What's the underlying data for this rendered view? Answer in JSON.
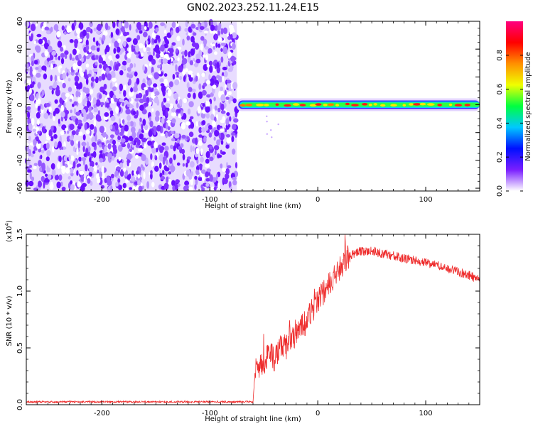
{
  "title": "GN02.2023.252.11.24.E15",
  "chart_data": [
    {
      "type": "heatmap",
      "xlabel": "Height of straight line (km)",
      "ylabel": "Frequency (Hz)",
      "xlim": [
        -270,
        150
      ],
      "ylim": [
        -62,
        60
      ],
      "x_tick_labels": [
        "-200",
        "-100",
        "0",
        "100"
      ],
      "y_tick_labels": [
        "60",
        "40",
        "20",
        "0",
        "-20",
        "-40",
        "-60"
      ],
      "noise_region_x": [
        -270,
        -75
      ],
      "signal_band_x": [
        -75,
        150
      ],
      "signal_center_hz": 0,
      "colorbar": {
        "label": "Normalized spectral amplitude",
        "range": [
          0,
          1
        ],
        "tick_labels": [
          "0.0",
          "0.2",
          "0.4",
          "0.6",
          "0.8"
        ],
        "colors": [
          "#ffffff",
          "#7a1fff",
          "#0010ff",
          "#00c8ff",
          "#00ff40",
          "#f0ff00",
          "#ff9000",
          "#ff0000",
          "#ff0080"
        ]
      }
    },
    {
      "type": "line",
      "xlabel": "Height of straight line (km)",
      "ylabel": "SNR (10 * v/v)",
      "y_scale_label": "(x10",
      "y_scale_exp": "4",
      "y_scale_close": ")",
      "xlim": [
        -270,
        150
      ],
      "ylim": [
        0,
        1.5
      ],
      "x_tick_labels": [
        "-200",
        "-100",
        "0",
        "100"
      ],
      "y_tick_labels": [
        "0.0",
        "0.5",
        "1.0",
        "1.5"
      ],
      "color": "#ee2b2b",
      "series": [
        {
          "x": [
            -270,
            -200,
            -150,
            -100,
            -70,
            -60,
            -58,
            -55,
            -50,
            -45,
            -40,
            -35,
            -30,
            -25,
            -20,
            -15,
            -10,
            -5,
            0,
            5,
            10,
            15,
            20,
            25,
            30,
            35,
            40,
            45,
            50,
            55,
            60,
            70,
            80,
            90,
            100,
            110,
            120,
            130,
            140,
            150
          ],
          "values": [
            0.025,
            0.025,
            0.025,
            0.025,
            0.025,
            0.025,
            0.3,
            0.35,
            0.38,
            0.45,
            0.4,
            0.5,
            0.5,
            0.6,
            0.62,
            0.68,
            0.75,
            0.82,
            0.9,
            0.98,
            1.05,
            1.12,
            1.2,
            1.27,
            1.31,
            1.34,
            1.35,
            1.35,
            1.36,
            1.34,
            1.33,
            1.31,
            1.29,
            1.27,
            1.25,
            1.23,
            1.2,
            1.17,
            1.14,
            1.1
          ]
        }
      ]
    }
  ]
}
